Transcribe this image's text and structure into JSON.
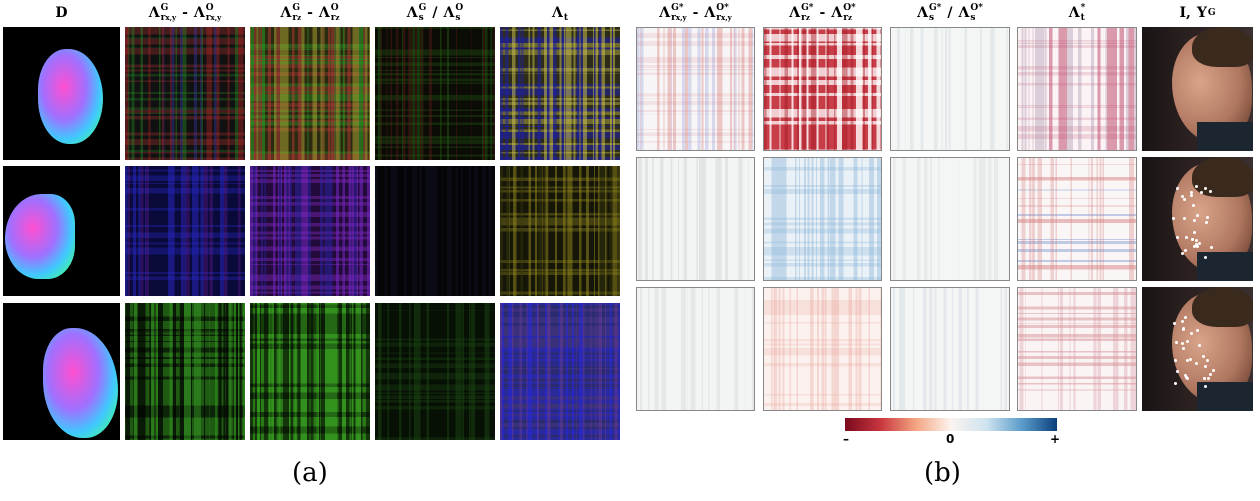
{
  "panel_a": {
    "headers": [
      {
        "segments": [
          {
            "base": "D"
          }
        ]
      },
      {
        "segments": [
          {
            "base": "Λ",
            "sup": "G",
            "sub": "r",
            "subsub": "x,y"
          },
          {
            "base": "-"
          },
          {
            "base": "Λ",
            "sup": "O",
            "sub": "r",
            "subsub": "x,y"
          }
        ]
      },
      {
        "segments": [
          {
            "base": "Λ",
            "sup": "G",
            "sub": "r",
            "subsub": "z"
          },
          {
            "base": "-"
          },
          {
            "base": "Λ",
            "sup": "O",
            "sub": "r",
            "subsub": "z"
          }
        ]
      },
      {
        "segments": [
          {
            "base": "Λ",
            "sup": "G",
            "sub": "s"
          },
          {
            "base": "/"
          },
          {
            "base": "Λ",
            "sup": "O",
            "sub": "s"
          }
        ]
      },
      {
        "segments": [
          {
            "base": "Λ",
            "sub": "t"
          }
        ]
      }
    ],
    "caption": "(a)"
  },
  "panel_b": {
    "headers": [
      {
        "segments": [
          {
            "base": "Λ",
            "sup": "G*",
            "sub": "r",
            "subsub": "x,y"
          },
          {
            "base": "-"
          },
          {
            "base": "Λ",
            "sup": "O*",
            "sub": "r",
            "subsub": "x,y"
          }
        ]
      },
      {
        "segments": [
          {
            "base": "Λ",
            "sup": "G*",
            "sub": "r",
            "subsub": "z"
          },
          {
            "base": "-"
          },
          {
            "base": "Λ",
            "sup": "O*",
            "sub": "r",
            "subsub": "z"
          }
        ]
      },
      {
        "segments": [
          {
            "base": "Λ",
            "sup": "G*",
            "sub": "s"
          },
          {
            "base": "/"
          },
          {
            "base": "Λ",
            "sup": "O*",
            "sub": "s"
          }
        ]
      },
      {
        "segments": [
          {
            "base": "Λ",
            "sub": "t",
            "sup": "*"
          }
        ]
      },
      {
        "segments": [
          {
            "base": "I,"
          },
          {
            "base": "Y",
            "sup": "G"
          }
        ]
      }
    ],
    "colorbar": {
      "labels": [
        "–",
        "0",
        "+"
      ]
    },
    "caption": "(b)"
  }
}
